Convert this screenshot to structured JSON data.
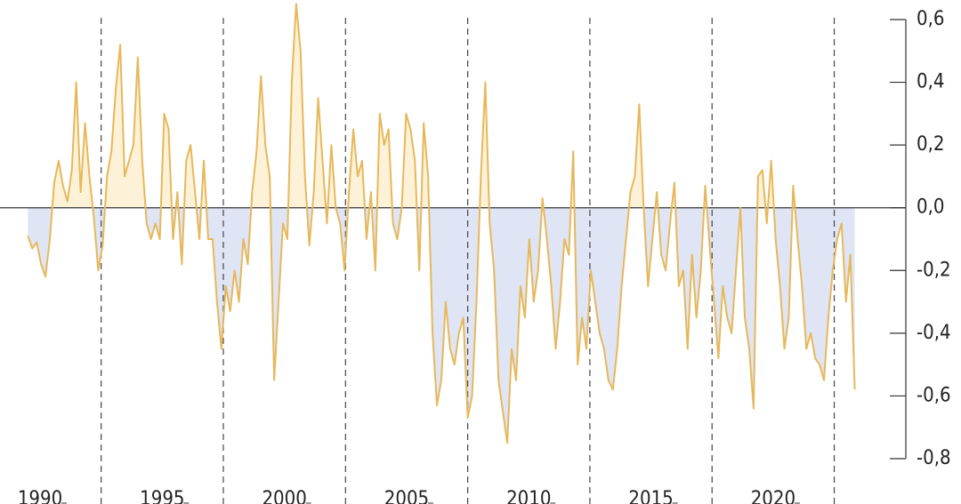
{
  "chart_data": {
    "type": "line",
    "x": [
      1989.5,
      1989.68,
      1989.86,
      1990.04,
      1990.22,
      1990.4,
      1990.58,
      1990.76,
      1990.94,
      1991.12,
      1991.3,
      1991.48,
      1991.66,
      1991.84,
      1992.02,
      1992.2,
      1992.38,
      1992.56,
      1992.74,
      1992.92,
      1993.1,
      1993.28,
      1993.46,
      1993.64,
      1993.82,
      1994,
      1994.18,
      1994.36,
      1994.54,
      1994.72,
      1994.9,
      1995.08,
      1995.26,
      1995.44,
      1995.62,
      1995.8,
      1995.98,
      1996.16,
      1996.34,
      1996.52,
      1996.7,
      1996.88,
      1997.06,
      1997.24,
      1997.42,
      1997.6,
      1997.78,
      1997.96,
      1998.14,
      1998.32,
      1998.5,
      1998.68,
      1998.86,
      1999.04,
      1999.22,
      1999.4,
      1999.58,
      1999.76,
      1999.94,
      2000.12,
      2000.3,
      2000.48,
      2000.66,
      2000.84,
      2001.02,
      2001.2,
      2001.38,
      2001.56,
      2001.74,
      2001.92,
      2002.1,
      2002.28,
      2002.46,
      2002.64,
      2002.82,
      2003,
      2003.18,
      2003.36,
      2003.54,
      2003.72,
      2003.9,
      2004.08,
      2004.26,
      2004.44,
      2004.62,
      2004.8,
      2004.98,
      2005.16,
      2005.34,
      2005.52,
      2005.7,
      2005.88,
      2006.06,
      2006.24,
      2006.42,
      2006.6,
      2006.78,
      2006.96,
      2007.14,
      2007.32,
      2007.5,
      2007.68,
      2007.86,
      2008.04,
      2008.22,
      2008.4,
      2008.58,
      2008.76,
      2008.94,
      2009.12,
      2009.3,
      2009.48,
      2009.66,
      2009.84,
      2010.02,
      2010.2,
      2010.38,
      2010.56,
      2010.74,
      2010.92,
      2011.1,
      2011.28,
      2011.46,
      2011.64,
      2011.82,
      2012,
      2012.18,
      2012.36,
      2012.54,
      2012.72,
      2012.9,
      2013.08,
      2013.26,
      2013.44,
      2013.62,
      2013.8,
      2013.98,
      2014.16,
      2014.34,
      2014.52,
      2014.7,
      2014.88,
      2015.06,
      2015.24,
      2015.42,
      2015.6,
      2015.78,
      2015.96,
      2016.14,
      2016.32,
      2016.5,
      2016.68,
      2016.86,
      2017.04,
      2017.22,
      2017.4,
      2017.58,
      2017.76,
      2017.94,
      2018.12,
      2018.3,
      2018.48,
      2018.66,
      2018.84,
      2019.02,
      2019.2,
      2019.38,
      2019.56,
      2019.74,
      2019.92,
      2020.1,
      2020.28,
      2020.46,
      2020.64,
      2020.82,
      2021,
      2021.18,
      2021.36,
      2021.54,
      2021.72,
      2021.9,
      2022.08,
      2022.26,
      2022.44,
      2022.62,
      2022.8,
      2022.98,
      2023.16,
      2023.34
    ],
    "series": [
      {
        "color": "#e6b85c",
        "values": [
          -0.09,
          -0.13,
          -0.11,
          -0.18,
          -0.22,
          -0.1,
          0.08,
          0.15,
          0.07,
          0.02,
          0.12,
          0.4,
          0.05,
          0.27,
          0.1,
          -0.03,
          -0.2,
          -0.12,
          0.1,
          0.18,
          0.38,
          0.52,
          0.1,
          0.15,
          0.2,
          0.48,
          0.15,
          -0.05,
          -0.1,
          -0.05,
          -0.1,
          0.3,
          0.25,
          -0.1,
          0.05,
          -0.18,
          0.15,
          0.2,
          0.05,
          -0.1,
          0.15,
          -0.1,
          -0.1,
          -0.3,
          -0.45,
          -0.25,
          -0.33,
          -0.2,
          -0.3,
          -0.1,
          -0.18,
          0.05,
          0.18,
          0.42,
          0.2,
          0.1,
          -0.55,
          -0.3,
          -0.05,
          -0.1,
          0.4,
          0.65,
          0.5,
          0.1,
          -0.12,
          0.05,
          0.35,
          0.15,
          -0.05,
          0.2,
          0,
          -0.05,
          -0.2,
          0.05,
          0.25,
          0.1,
          0.15,
          -0.1,
          0.05,
          -0.2,
          0.3,
          0.2,
          0.25,
          -0.05,
          -0.1,
          0,
          0.3,
          0.25,
          0.15,
          -0.2,
          0.27,
          0.1,
          -0.4,
          -0.63,
          -0.55,
          -0.3,
          -0.45,
          -0.5,
          -0.4,
          -0.35,
          -0.67,
          -0.6,
          -0.3,
          0.1,
          0.4,
          -0.05,
          -0.2,
          -0.55,
          -0.65,
          -0.75,
          -0.45,
          -0.55,
          -0.25,
          -0.35,
          -0.1,
          -0.3,
          -0.2,
          0.03,
          -0.1,
          -0.25,
          -0.45,
          -0.3,
          -0.1,
          -0.15,
          0.18,
          -0.5,
          -0.35,
          -0.45,
          -0.2,
          -0.3,
          -0.4,
          -0.45,
          -0.55,
          -0.58,
          -0.45,
          -0.25,
          -0.1,
          0.05,
          0.1,
          0.33,
          0,
          -0.25,
          -0.1,
          0.05,
          -0.15,
          -0.2,
          -0.05,
          0.08,
          -0.25,
          -0.2,
          -0.45,
          -0.15,
          -0.35,
          -0.2,
          0.07,
          -0.12,
          -0.3,
          -0.48,
          -0.25,
          -0.35,
          -0.4,
          -0.2,
          0,
          -0.35,
          -0.45,
          -0.64,
          0.1,
          0.12,
          -0.05,
          0.15,
          -0.1,
          -0.25,
          -0.45,
          -0.35,
          0.07,
          -0.1,
          -0.25,
          -0.45,
          -0.4,
          -0.48,
          -0.5,
          -0.55,
          -0.35,
          -0.2,
          -0.1,
          -0.05,
          -0.3,
          -0.15,
          -0.58
        ]
      }
    ],
    "fill_above": "#fdf2d8",
    "fill_below": "#dfe5f4",
    "xlim": [
      1988.36,
      2025.43
    ],
    "xticks": [
      1990,
      1995,
      2000,
      2005,
      2010,
      2015,
      2020
    ],
    "dividers": [
      1992.5,
      1997.5,
      2002.5,
      2007.5,
      2012.5,
      2017.5,
      2022.5
    ],
    "ylim": [
      -0.8,
      0.6
    ],
    "yticks": [
      {
        "value": 0.6,
        "label": "0,6"
      },
      {
        "value": 0.4,
        "label": "0,4"
      },
      {
        "value": 0.2,
        "label": "0,2"
      },
      {
        "value": 0,
        "label": "0,0"
      },
      {
        "value": -0.2,
        "label": "-0,2"
      },
      {
        "value": -0.4,
        "label": "-0,4"
      },
      {
        "value": -0.6,
        "label": "-0,6"
      },
      {
        "value": -0.8,
        "label": "-0,8"
      }
    ],
    "y_axis_side": "right"
  }
}
